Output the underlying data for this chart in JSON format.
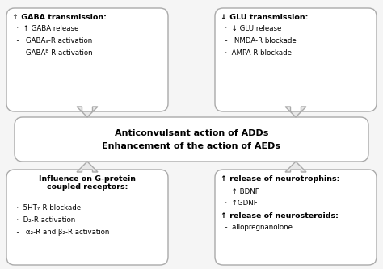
{
  "bg_color": "#f5f5f5",
  "box_fc": "#ffffff",
  "box_ec": "#aaaaaa",
  "arrow_fc": "#e8e8e8",
  "arrow_ec": "#aaaaaa",
  "top_left_title": "↑ GABA transmission:",
  "top_left_lines": [
    [
      "  ·  ↑ GABA release",
      false
    ],
    [
      "  -   GABAₐ-R activation",
      false
    ],
    [
      "  -   GABAᴮ-R activation",
      false
    ]
  ],
  "top_right_title": "↓ GLU transmission:",
  "top_right_lines": [
    [
      "  ·  ↓ GLU release",
      false
    ],
    [
      "  -   NMDA-R blockade",
      false
    ],
    [
      "  ·  AMPA-R blockade",
      false
    ]
  ],
  "center_line1": "Anticonvulsant action of ADDs",
  "center_line2": "Enhancement of the action of AEDs",
  "bot_left_title": "Influence on G-protein\ncoupled receptors:",
  "bot_left_lines": [
    [
      "  ·  5HT₇-R blockade",
      false
    ],
    [
      "  ·  D₂-R activation",
      false
    ],
    [
      "  -   α₂-R and β₂-R activation",
      false
    ]
  ],
  "bot_right_title": "↑ release of neurotrophins:",
  "bot_right_lines": [
    [
      "  ·  ↑ BDNF",
      false
    ],
    [
      "  ·  ↑GDNF",
      false
    ]
  ],
  "bot_right_title2": "↑ release of neurosteroids:",
  "bot_right_lines2": [
    [
      "  -  allopregnanolone",
      false
    ]
  ]
}
